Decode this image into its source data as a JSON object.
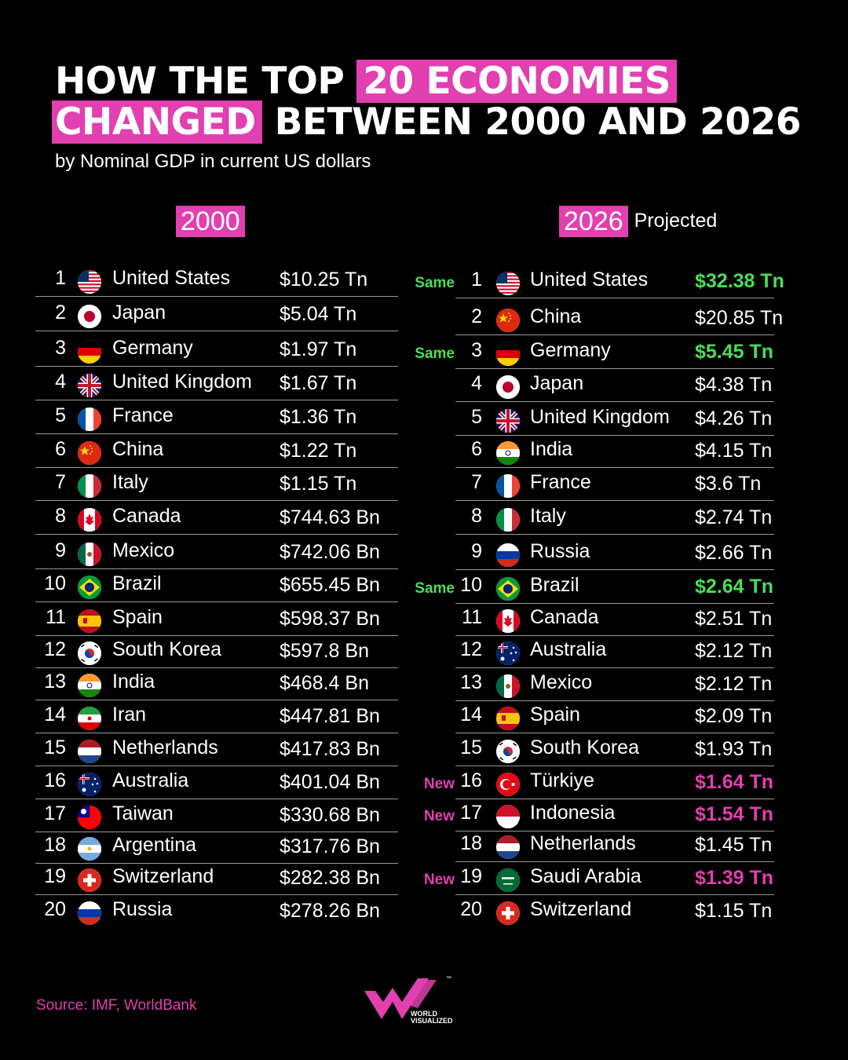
{
  "title": {
    "part1": "HOW THE TOP",
    "highlight1": "20 ECONOMIES",
    "highlight2": "CHANGED",
    "part2": "BETWEEN 2000 AND 2026"
  },
  "subtitle": "by Nominal GDP in current US dollars",
  "columns": {
    "left_year": "2000",
    "right_year": "2026",
    "right_suffix": "Projected"
  },
  "colors": {
    "accent": "#e23fb0",
    "same": "#4ade56",
    "background": "#000000"
  },
  "chart_data": {
    "type": "table",
    "tables": [
      {
        "year": "2000",
        "rows": [
          {
            "rank": "1",
            "flag": "us-flag-icon",
            "country": "United States",
            "value": "$10.25 Tn"
          },
          {
            "rank": "2",
            "flag": "jp-flag-icon",
            "country": "Japan",
            "value": "$5.04 Tn"
          },
          {
            "rank": "3",
            "flag": "de-flag-icon",
            "country": "Germany",
            "value": "$1.97 Tn"
          },
          {
            "rank": "4",
            "flag": "gb-flag-icon",
            "country": "United Kingdom",
            "value": "$1.67 Tn"
          },
          {
            "rank": "5",
            "flag": "fr-flag-icon",
            "country": "France",
            "value": "$1.36 Tn"
          },
          {
            "rank": "6",
            "flag": "cn-flag-icon",
            "country": "China",
            "value": "$1.22 Tn"
          },
          {
            "rank": "7",
            "flag": "it-flag-icon",
            "country": "Italy",
            "value": "$1.15 Tn"
          },
          {
            "rank": "8",
            "flag": "ca-flag-icon",
            "country": "Canada",
            "value": "$744.63 Bn"
          },
          {
            "rank": "9",
            "flag": "mx-flag-icon",
            "country": "Mexico",
            "value": "$742.06 Bn"
          },
          {
            "rank": "10",
            "flag": "br-flag-icon",
            "country": "Brazil",
            "value": "$655.45 Bn"
          },
          {
            "rank": "11",
            "flag": "es-flag-icon",
            "country": "Spain",
            "value": "$598.37 Bn"
          },
          {
            "rank": "12",
            "flag": "kr-flag-icon",
            "country": "South Korea",
            "value": "$597.8 Bn"
          },
          {
            "rank": "13",
            "flag": "in-flag-icon",
            "country": "India",
            "value": "$468.4 Bn"
          },
          {
            "rank": "14",
            "flag": "ir-flag-icon",
            "country": "Iran",
            "value": "$447.81 Bn"
          },
          {
            "rank": "15",
            "flag": "nl-flag-icon",
            "country": "Netherlands",
            "value": "$417.83 Bn"
          },
          {
            "rank": "16",
            "flag": "au-flag-icon",
            "country": "Australia",
            "value": "$401.04 Bn"
          },
          {
            "rank": "17",
            "flag": "tw-flag-icon",
            "country": "Taiwan",
            "value": "$330.68 Bn"
          },
          {
            "rank": "18",
            "flag": "ar-flag-icon",
            "country": "Argentina",
            "value": "$317.76 Bn"
          },
          {
            "rank": "19",
            "flag": "ch-flag-icon",
            "country": "Switzerland",
            "value": "$282.38 Bn"
          },
          {
            "rank": "20",
            "flag": "ru-flag-icon",
            "country": "Russia",
            "value": "$278.26 Bn"
          }
        ]
      },
      {
        "year": "2026",
        "rows": [
          {
            "rank": "1",
            "flag": "us-flag-icon",
            "country": "United States",
            "value": "$32.38 Tn",
            "tag": "Same",
            "status": "same"
          },
          {
            "rank": "2",
            "flag": "cn-flag-icon",
            "country": "China",
            "value": "$20.85 Tn",
            "tag": "",
            "status": ""
          },
          {
            "rank": "3",
            "flag": "de-flag-icon",
            "country": "Germany",
            "value": "$5.45 Tn",
            "tag": "Same",
            "status": "same"
          },
          {
            "rank": "4",
            "flag": "jp-flag-icon",
            "country": "Japan",
            "value": "$4.38 Tn",
            "tag": "",
            "status": ""
          },
          {
            "rank": "5",
            "flag": "gb-flag-icon",
            "country": "United Kingdom",
            "value": "$4.26 Tn",
            "tag": "",
            "status": ""
          },
          {
            "rank": "6",
            "flag": "in-flag-icon",
            "country": "India",
            "value": "$4.15 Tn",
            "tag": "",
            "status": ""
          },
          {
            "rank": "7",
            "flag": "fr-flag-icon",
            "country": "France",
            "value": "$3.6 Tn",
            "tag": "",
            "status": ""
          },
          {
            "rank": "8",
            "flag": "it-flag-icon",
            "country": "Italy",
            "value": "$2.74 Tn",
            "tag": "",
            "status": ""
          },
          {
            "rank": "9",
            "flag": "ru-flag-icon",
            "country": "Russia",
            "value": "$2.66 Tn",
            "tag": "",
            "status": ""
          },
          {
            "rank": "10",
            "flag": "br-flag-icon",
            "country": "Brazil",
            "value": "$2.64 Tn",
            "tag": "Same",
            "status": "same"
          },
          {
            "rank": "11",
            "flag": "ca-flag-icon",
            "country": "Canada",
            "value": "$2.51 Tn",
            "tag": "",
            "status": ""
          },
          {
            "rank": "12",
            "flag": "au-flag-icon",
            "country": "Australia",
            "value": "$2.12 Tn",
            "tag": "",
            "status": ""
          },
          {
            "rank": "13",
            "flag": "mx-flag-icon",
            "country": "Mexico",
            "value": "$2.12 Tn",
            "tag": "",
            "status": ""
          },
          {
            "rank": "14",
            "flag": "es-flag-icon",
            "country": "Spain",
            "value": "$2.09 Tn",
            "tag": "",
            "status": ""
          },
          {
            "rank": "15",
            "flag": "kr-flag-icon",
            "country": "South Korea",
            "value": "$1.93 Tn",
            "tag": "",
            "status": ""
          },
          {
            "rank": "16",
            "flag": "tr-flag-icon",
            "country": "Türkiye",
            "value": "$1.64 Tn",
            "tag": "New",
            "status": "new"
          },
          {
            "rank": "17",
            "flag": "id-flag-icon",
            "country": "Indonesia",
            "value": "$1.54 Tn",
            "tag": "New",
            "status": "new"
          },
          {
            "rank": "18",
            "flag": "nl-flag-icon",
            "country": "Netherlands",
            "value": "$1.45 Tn",
            "tag": "",
            "status": ""
          },
          {
            "rank": "19",
            "flag": "sa-flag-icon",
            "country": "Saudi Arabia",
            "value": "$1.39 Tn",
            "tag": "New",
            "status": "new"
          },
          {
            "rank": "20",
            "flag": "ch-flag-icon",
            "country": "Switzerland",
            "value": "$1.15 Tn",
            "tag": "",
            "status": ""
          }
        ]
      }
    ]
  },
  "source": "Source: IMF, WorldBank",
  "logo": {
    "icon": "world-visualized-logo-icon",
    "line1": "WORLD",
    "line2": "VISUALIZED",
    "tm": "™"
  }
}
